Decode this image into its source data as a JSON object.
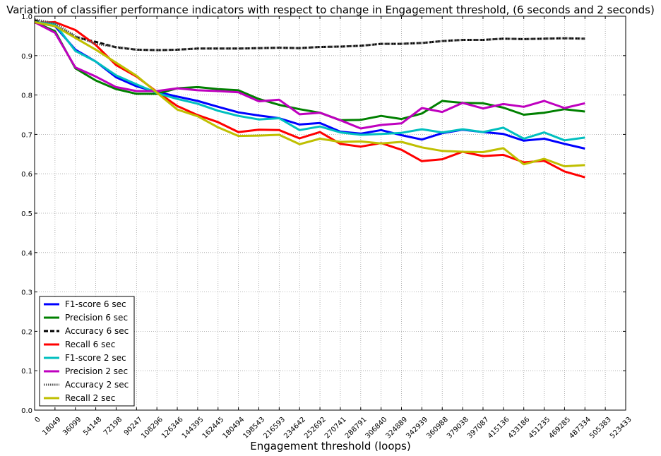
{
  "chart_data": {
    "type": "line",
    "title": "Variation of classifier performance indicators with respect to change in Engagement threshold, (6 seconds and 2 seconds)",
    "xlabel": "Engagement threshold (loops)",
    "ylabel": "",
    "xlim": [
      0,
      523433
    ],
    "ylim": [
      0.0,
      1.0
    ],
    "grid": true,
    "legend_position": "lower-left",
    "x_ticks": [
      0,
      18049,
      36099,
      54148,
      72198,
      90247,
      108296,
      126346,
      144395,
      162445,
      180494,
      198543,
      216593,
      234642,
      252692,
      270741,
      288791,
      306840,
      324889,
      342939,
      360988,
      379038,
      397087,
      415136,
      433186,
      451235,
      469285,
      487334,
      505383,
      523433
    ],
    "y_ticks": [
      "0.0",
      "0.1",
      "0.2",
      "0.3",
      "0.4",
      "0.5",
      "0.6",
      "0.7",
      "0.8",
      "0.9",
      "1.0"
    ],
    "x": [
      0,
      18049,
      36099,
      54148,
      72198,
      90247,
      108296,
      126346,
      144395,
      162445,
      180494,
      198543,
      216593,
      234642,
      252692,
      270741,
      288791,
      306840,
      324889,
      342939,
      360988,
      379038,
      397087,
      415136,
      433186,
      451235,
      469285,
      487334
    ],
    "series": [
      {
        "name": "F1-score 6 sec",
        "color": "#0000ff",
        "dash": "solid",
        "values": [
          0.985,
          0.975,
          0.915,
          0.885,
          0.845,
          0.822,
          0.808,
          0.796,
          0.785,
          0.77,
          0.756,
          0.748,
          0.741,
          0.725,
          0.729,
          0.707,
          0.702,
          0.711,
          0.698,
          0.687,
          0.703,
          0.712,
          0.706,
          0.701,
          0.684,
          0.689,
          0.676,
          0.664
        ]
      },
      {
        "name": "Precision 6 sec",
        "color": "#008000",
        "dash": "solid",
        "values": [
          0.985,
          0.962,
          0.868,
          0.837,
          0.815,
          0.803,
          0.803,
          0.817,
          0.82,
          0.815,
          0.812,
          0.79,
          0.775,
          0.764,
          0.755,
          0.736,
          0.737,
          0.747,
          0.739,
          0.753,
          0.785,
          0.78,
          0.779,
          0.768,
          0.75,
          0.755,
          0.764,
          0.758
        ]
      },
      {
        "name": "Accuracy 6 sec",
        "color": "#000000",
        "dash": "dashed",
        "values": [
          0.99,
          0.975,
          0.947,
          0.935,
          0.921,
          0.915,
          0.914,
          0.915,
          0.918,
          0.918,
          0.918,
          0.919,
          0.92,
          0.919,
          0.922,
          0.923,
          0.925,
          0.93,
          0.93,
          0.932,
          0.937,
          0.94,
          0.94,
          0.943,
          0.942,
          0.943,
          0.944,
          0.943
        ]
      },
      {
        "name": "Recall 6 sec",
        "color": "#ff0000",
        "dash": "solid",
        "values": [
          0.983,
          0.985,
          0.965,
          0.927,
          0.876,
          0.847,
          0.808,
          0.772,
          0.749,
          0.731,
          0.706,
          0.712,
          0.711,
          0.69,
          0.706,
          0.676,
          0.669,
          0.678,
          0.661,
          0.632,
          0.637,
          0.656,
          0.645,
          0.648,
          0.629,
          0.633,
          0.606,
          0.591
        ]
      },
      {
        "name": "F1-score 2 sec",
        "color": "#00bfbf",
        "dash": "solid",
        "values": [
          0.985,
          0.98,
          0.912,
          0.885,
          0.85,
          0.827,
          0.805,
          0.79,
          0.778,
          0.76,
          0.747,
          0.738,
          0.741,
          0.711,
          0.72,
          0.705,
          0.699,
          0.701,
          0.704,
          0.713,
          0.705,
          0.713,
          0.706,
          0.717,
          0.689,
          0.705,
          0.685,
          0.692
        ]
      },
      {
        "name": "Precision 2 sec",
        "color": "#bf00bf",
        "dash": "solid",
        "values": [
          0.985,
          0.958,
          0.87,
          0.847,
          0.82,
          0.81,
          0.81,
          0.817,
          0.812,
          0.81,
          0.807,
          0.784,
          0.788,
          0.751,
          0.755,
          0.736,
          0.715,
          0.724,
          0.728,
          0.767,
          0.757,
          0.78,
          0.766,
          0.777,
          0.77,
          0.785,
          0.767,
          0.779
        ]
      },
      {
        "name": "Accuracy 2 sec",
        "color": "#555555",
        "dash": "dotted",
        "values": [
          0.992,
          0.982,
          0.95,
          0.93,
          0.922,
          0.915,
          0.914,
          0.915,
          0.918,
          0.918,
          0.918,
          0.919,
          0.92,
          0.919,
          0.922,
          0.923,
          0.925,
          0.93,
          0.93,
          0.932,
          0.937,
          0.94,
          0.94,
          0.943,
          0.942,
          0.943,
          0.944,
          0.943
        ]
      },
      {
        "name": "Recall 2 sec",
        "color": "#bfbf00",
        "dash": "solid",
        "values": [
          0.985,
          0.975,
          0.945,
          0.915,
          0.882,
          0.849,
          0.806,
          0.763,
          0.746,
          0.718,
          0.696,
          0.697,
          0.699,
          0.675,
          0.689,
          0.681,
          0.682,
          0.677,
          0.681,
          0.667,
          0.658,
          0.656,
          0.655,
          0.665,
          0.624,
          0.638,
          0.619,
          0.622
        ]
      }
    ]
  }
}
